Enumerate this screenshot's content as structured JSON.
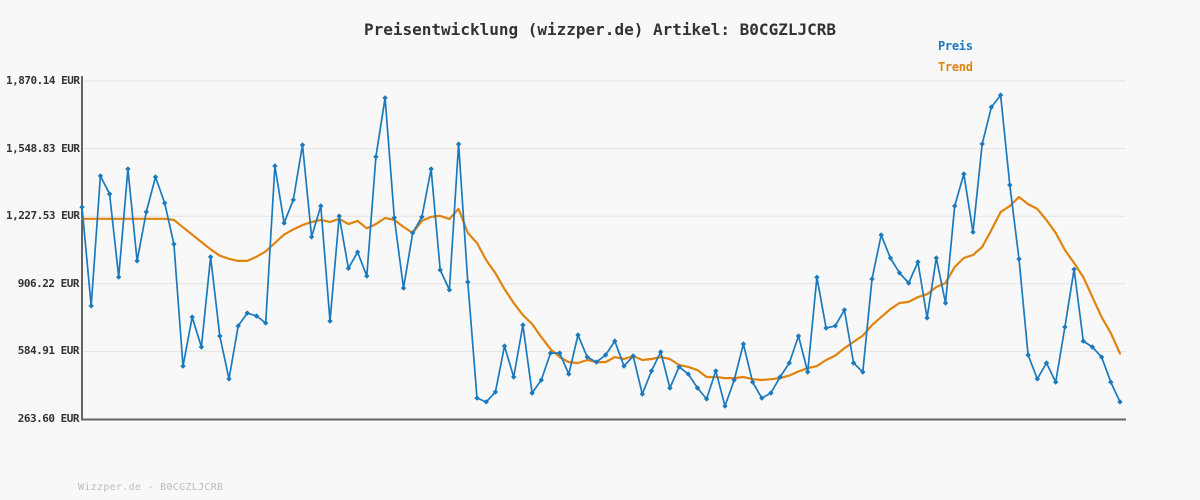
{
  "header": {
    "title": "Preisentwicklung (wizzper.de) Artikel: B0CGZLJCRB"
  },
  "legend": {
    "preis_label": "Preis",
    "trend_label": "Trend"
  },
  "footer": {
    "note": "Wizzper.de - B0CGZLJCRB"
  },
  "colors": {
    "background": "#f8f8f8",
    "grid": "#e3e3e3",
    "axis": "#646464",
    "preis": "#1b7abd",
    "trend": "#e0830f",
    "title_text": "#333333",
    "tick_text": "#333333",
    "footer_text": "#bdbdbd"
  },
  "chart_data": {
    "type": "line",
    "title": "Preisentwicklung (wizzper.de) Artikel: B0CGZLJCRB",
    "unit": "EUR",
    "grid": "horizontal",
    "legend_position": "top-right",
    "ylim": [
      263.6,
      1870.14
    ],
    "y_ticks": [
      {
        "value": 1870.14,
        "label": "1,870.14 EUR"
      },
      {
        "value": 1548.83,
        "label": "1,548.83 EUR"
      },
      {
        "value": 1227.53,
        "label": "1,227.53 EUR"
      },
      {
        "value": 906.22,
        "label": "906.22 EUR"
      },
      {
        "value": 584.91,
        "label": "584.91 EUR"
      },
      {
        "value": 263.6,
        "label": "263.60 EUR"
      }
    ],
    "series": [
      {
        "name": "Preis",
        "color": "#1b7abd",
        "markers": true,
        "values": [
          1271,
          801,
          1419,
          1333,
          938,
          1452,
          1015,
          1248,
          1414,
          1290,
          1095,
          515,
          748,
          606,
          1034,
          658,
          454,
          706,
          767,
          753,
          720,
          1466,
          1195,
          1305,
          1566,
          1129,
          1276,
          729,
          1228,
          980,
          1057,
          943,
          1510,
          1790,
          1220,
          886,
          1148,
          1224,
          1452,
          972,
          877,
          1570,
          915,
          363,
          345,
          392,
          610,
          463,
          710,
          387,
          449,
          577,
          577,
          477,
          663,
          558,
          534,
          568,
          634,
          515,
          563,
          382,
          492,
          582,
          411,
          511,
          477,
          411,
          359,
          492,
          325,
          449,
          620,
          439,
          363,
          387,
          463,
          530,
          658,
          487,
          937,
          696,
          706,
          782,
          530,
          487,
          929,
          1138,
          1029,
          958,
          910,
          1010,
          744,
          1029,
          815,
          1276,
          1428,
          1152,
          1571,
          1746,
          1803,
          1376,
          1024,
          568,
          454,
          530,
          439,
          701,
          975,
          634,
          606,
          558,
          439,
          345
        ]
      },
      {
        "name": "Trend",
        "color": "#e0830f",
        "markers": false,
        "values": [
          1215,
          1215,
          1215,
          1215,
          1215,
          1215,
          1215,
          1215,
          1215,
          1215,
          1210,
          1175,
          1140,
          1105,
          1070,
          1040,
          1025,
          1015,
          1015,
          1035,
          1060,
          1100,
          1140,
          1165,
          1185,
          1200,
          1210,
          1200,
          1215,
          1190,
          1205,
          1170,
          1190,
          1219,
          1210,
          1176,
          1148,
          1205,
          1224,
          1229,
          1214,
          1262,
          1148,
          1100,
          1019,
          957,
          881,
          815,
          758,
          715,
          653,
          596,
          558,
          534,
          530,
          544,
          534,
          534,
          558,
          549,
          563,
          544,
          549,
          558,
          549,
          520,
          511,
          496,
          463,
          463,
          458,
          458,
          463,
          453,
          449,
          453,
          458,
          470,
          490,
          505,
          515,
          544,
          565,
          600,
          630,
          660,
          710,
          748,
          786,
          815,
          820,
          843,
          857,
          891,
          910,
          986,
          1029,
          1043,
          1081,
          1162,
          1247,
          1276,
          1319,
          1285,
          1262,
          1209,
          1148,
          1067,
          1005,
          938,
          843,
          748,
          672,
          575
        ]
      }
    ]
  }
}
